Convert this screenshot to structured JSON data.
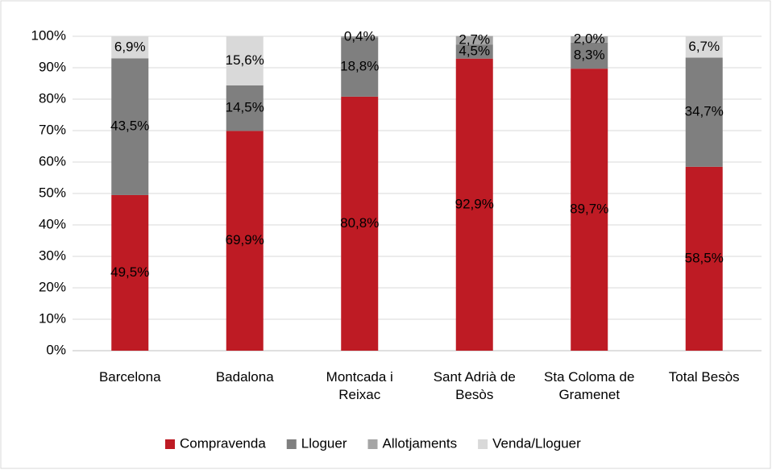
{
  "chart_data": {
    "type": "stacked_bar",
    "categories": [
      "Barcelona",
      "Badalona",
      "Montcada i Reixac",
      "Sant Adrià de Besòs",
      "Sta Coloma de Gramenet",
      "Total Besòs"
    ],
    "series": [
      {
        "name": "Compravenda",
        "color": "#be1b24",
        "values": [
          49.5,
          69.9,
          80.8,
          92.9,
          89.7,
          58.5
        ],
        "value_labels": [
          "49,5%",
          "69,9%",
          "80,8%",
          "92,9%",
          "89,7%",
          "58,5%"
        ]
      },
      {
        "name": "Lloguer",
        "color": "#7f7f7f",
        "values": [
          43.5,
          14.5,
          18.8,
          4.5,
          8.3,
          34.7
        ],
        "value_labels": [
          "43,5%",
          "14,5%",
          "18,8%",
          "4,5%",
          "8,3%",
          "34,7%"
        ]
      },
      {
        "name": "Allotjaments",
        "color": "#a5a5a5",
        "values": [
          null,
          null,
          0.4,
          2.7,
          2.0,
          null
        ],
        "value_labels": [
          null,
          null,
          "0,4%",
          "2,7%",
          "2,0%",
          null
        ]
      },
      {
        "name": "Venda/Lloguer",
        "color": "#d9d9d9",
        "values": [
          6.9,
          15.6,
          null,
          null,
          null,
          6.7
        ],
        "value_labels": [
          "6,9%",
          "15,6%",
          null,
          null,
          null,
          "6,7%"
        ]
      }
    ],
    "ylim": [
      0,
      100
    ],
    "yticks": [
      {
        "value": 0,
        "label": "0%"
      },
      {
        "value": 10,
        "label": "10%"
      },
      {
        "value": 20,
        "label": "20%"
      },
      {
        "value": 30,
        "label": "30%"
      },
      {
        "value": 40,
        "label": "40%"
      },
      {
        "value": 50,
        "label": "50%"
      },
      {
        "value": 60,
        "label": "60%"
      },
      {
        "value": 70,
        "label": "70%"
      },
      {
        "value": 80,
        "label": "80%"
      },
      {
        "value": 90,
        "label": "90%"
      },
      {
        "value": 100,
        "label": "100%"
      }
    ],
    "grid": true,
    "legend": "bottom"
  }
}
